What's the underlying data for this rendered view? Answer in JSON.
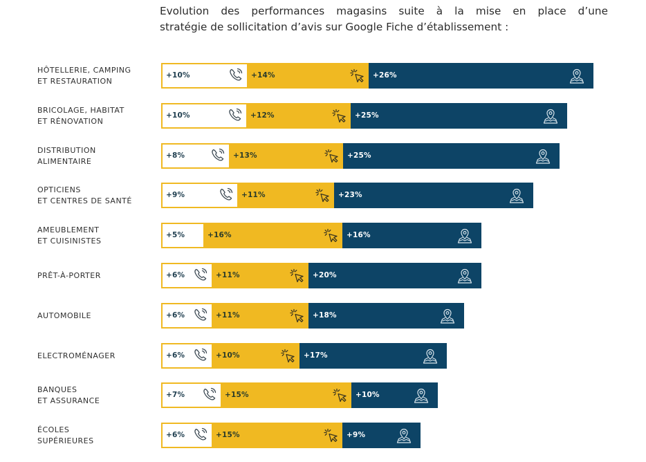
{
  "title": {
    "line1": "Evolution des performances magasins suite à la mise en place d’une",
    "line2": "stratégie de sollicitation d’avis sur Google Fiche d’établissement :"
  },
  "icons": {
    "calls": "phone-icon",
    "clicks": "cursor-click-icon",
    "directions": "map-pin-icon"
  },
  "colors": {
    "calls_fill": "#ffffff",
    "calls_border": "#f0b922",
    "clicks": "#f0b922",
    "directions": "#0d4466",
    "label_text": "#2f2f2f"
  },
  "chart_data": {
    "type": "bar",
    "orientation": "horizontal",
    "stacked": true,
    "title": "Evolution des performances magasins suite à la mise en place d’une stratégie de sollicitation d’avis sur Google Fiche d’établissement :",
    "xlabel": "",
    "ylabel": "",
    "grid": false,
    "legend": "none (segments identified by icons: phone, click cursor, map pin)",
    "categories": [
      [
        "HÔTELLERIE, CAMPING",
        "ET RESTAURATION"
      ],
      [
        "BRICOLAGE, HABITAT",
        "ET RÉNOVATION"
      ],
      [
        "DISTRIBUTION",
        "ALIMENTAIRE"
      ],
      [
        "OPTICIENS",
        "ET CENTRES DE SANTÉ"
      ],
      [
        "AMEUBLEMENT",
        "ET CUISINISTES"
      ],
      [
        "PRÊT-À-PORTER"
      ],
      [
        "AUTOMOBILE"
      ],
      [
        "ELECTROMÉNAGER"
      ],
      [
        "BANQUES",
        "ET ASSURANCE"
      ],
      [
        "ÉCOLES",
        "SUPÉRIEURES"
      ]
    ],
    "series": [
      {
        "name": "Appels",
        "icon": "phone-icon",
        "values": [
          10,
          10,
          8,
          9,
          5,
          6,
          6,
          6,
          7,
          6
        ],
        "labels": [
          "+10%",
          "+10%",
          "+8%",
          "+9%",
          "+5%",
          "+6%",
          "+6%",
          "+6%",
          "+7%",
          "+6%"
        ],
        "icon_shown": [
          true,
          true,
          true,
          true,
          false,
          true,
          true,
          true,
          true,
          true
        ]
      },
      {
        "name": "Clics vers le site",
        "icon": "cursor-click-icon",
        "values": [
          14,
          12,
          13,
          11,
          16,
          11,
          11,
          10,
          15,
          15
        ],
        "labels": [
          "+14%",
          "+12%",
          "+13%",
          "+11%",
          "+16%",
          "+11%",
          "+11%",
          "+10%",
          "+15%",
          "+15%"
        ]
      },
      {
        "name": "Demandes d’itinéraire",
        "icon": "map-pin-icon",
        "values": [
          26,
          25,
          25,
          23,
          16,
          20,
          18,
          17,
          10,
          9
        ],
        "labels": [
          "+26%",
          "+25%",
          "+25%",
          "+23%",
          "+16%",
          "+20%",
          "+18%",
          "+17%",
          "+10%",
          "+9%"
        ]
      }
    ]
  }
}
